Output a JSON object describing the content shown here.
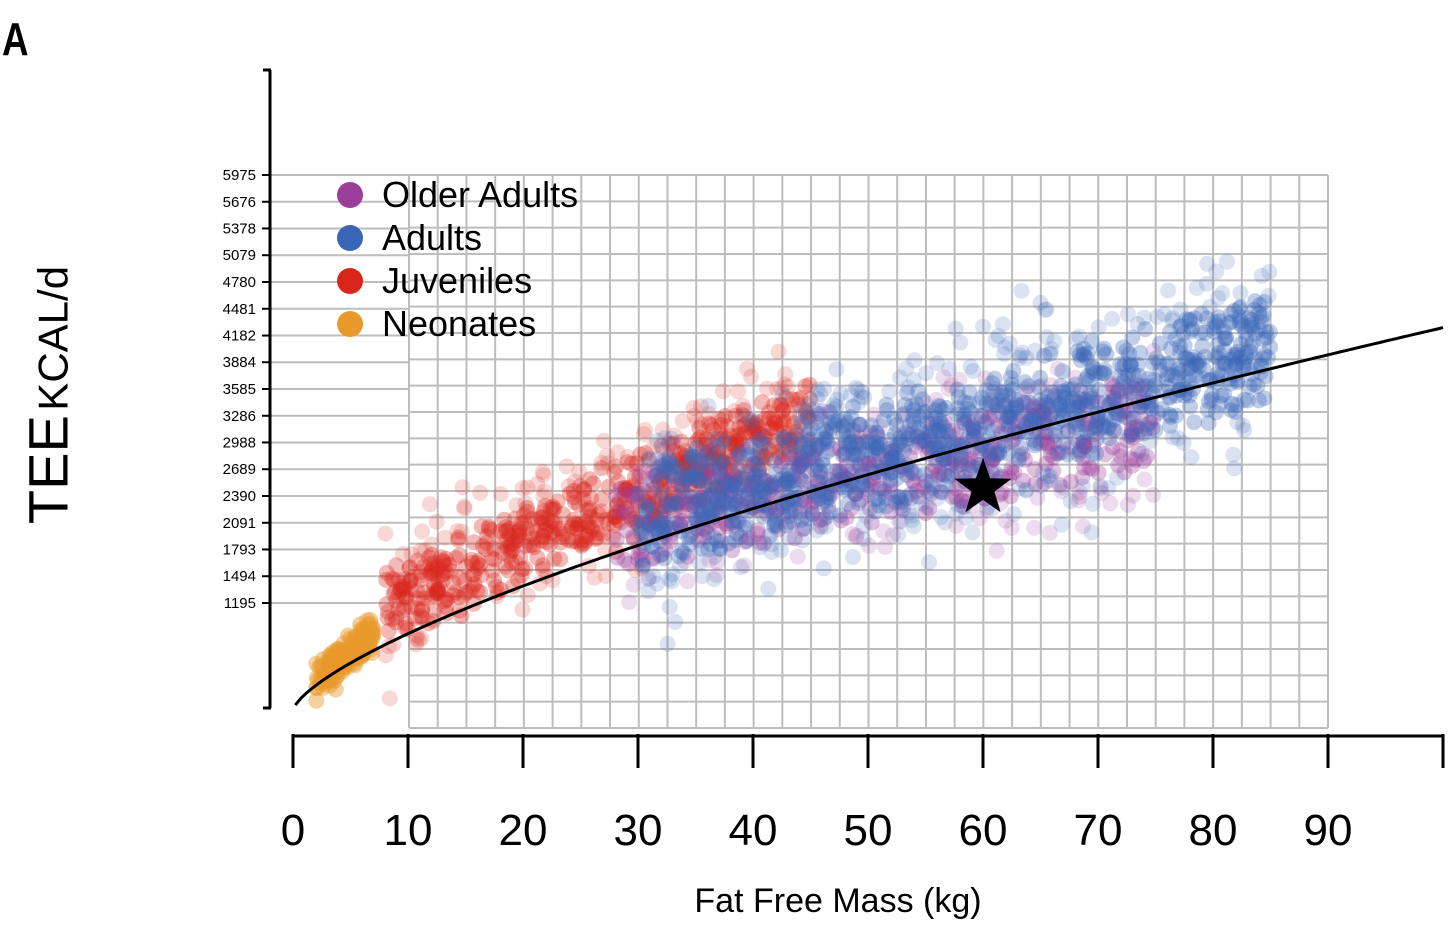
{
  "figure": {
    "panel_letter": "A"
  },
  "chart_data": {
    "type": "scatter",
    "xlabel": "Fat Free Mass (kg)",
    "ylabel_main": "TEE",
    "ylabel_unit": "KCAL/d",
    "x_ticks": [
      0,
      10,
      20,
      30,
      40,
      50,
      60,
      70,
      80,
      90
    ],
    "xlim": [
      0,
      100
    ],
    "y_ticks": [
      1195,
      1494,
      1793,
      2091,
      2390,
      2689,
      2988,
      3286,
      3585,
      3884,
      4182,
      4481,
      4780,
      5079,
      5378,
      5676,
      5975
    ],
    "ylim": [
      0,
      7150
    ],
    "grid": true,
    "legend_position": "top-left",
    "series": [
      {
        "name": "Older Adults",
        "color": "#9b3e9b",
        "x_range": [
          28,
          75
        ],
        "y_center": [
          2050,
          3200
        ],
        "spread": 380
      },
      {
        "name": "Adults",
        "color": "#3a66b8",
        "x_range": [
          30,
          85
        ],
        "y_center": [
          2150,
          4000
        ],
        "spread": 450
      },
      {
        "name": "Juveniles",
        "color": "#d9261c",
        "x_range": [
          8,
          45
        ],
        "y_center": [
          1150,
          3300
        ],
        "spread": 300
      },
      {
        "name": "Neonates",
        "color": "#e9982a",
        "x_range": [
          2,
          7
        ],
        "y_center": [
          280,
          900
        ],
        "spread": 110
      }
    ],
    "fit_curve": {
      "type": "power",
      "a": 170,
      "b": 0.7,
      "x_range": [
        0.2,
        100
      ]
    },
    "highlight": {
      "symbol": "star",
      "x": 60,
      "y": 2480
    }
  }
}
